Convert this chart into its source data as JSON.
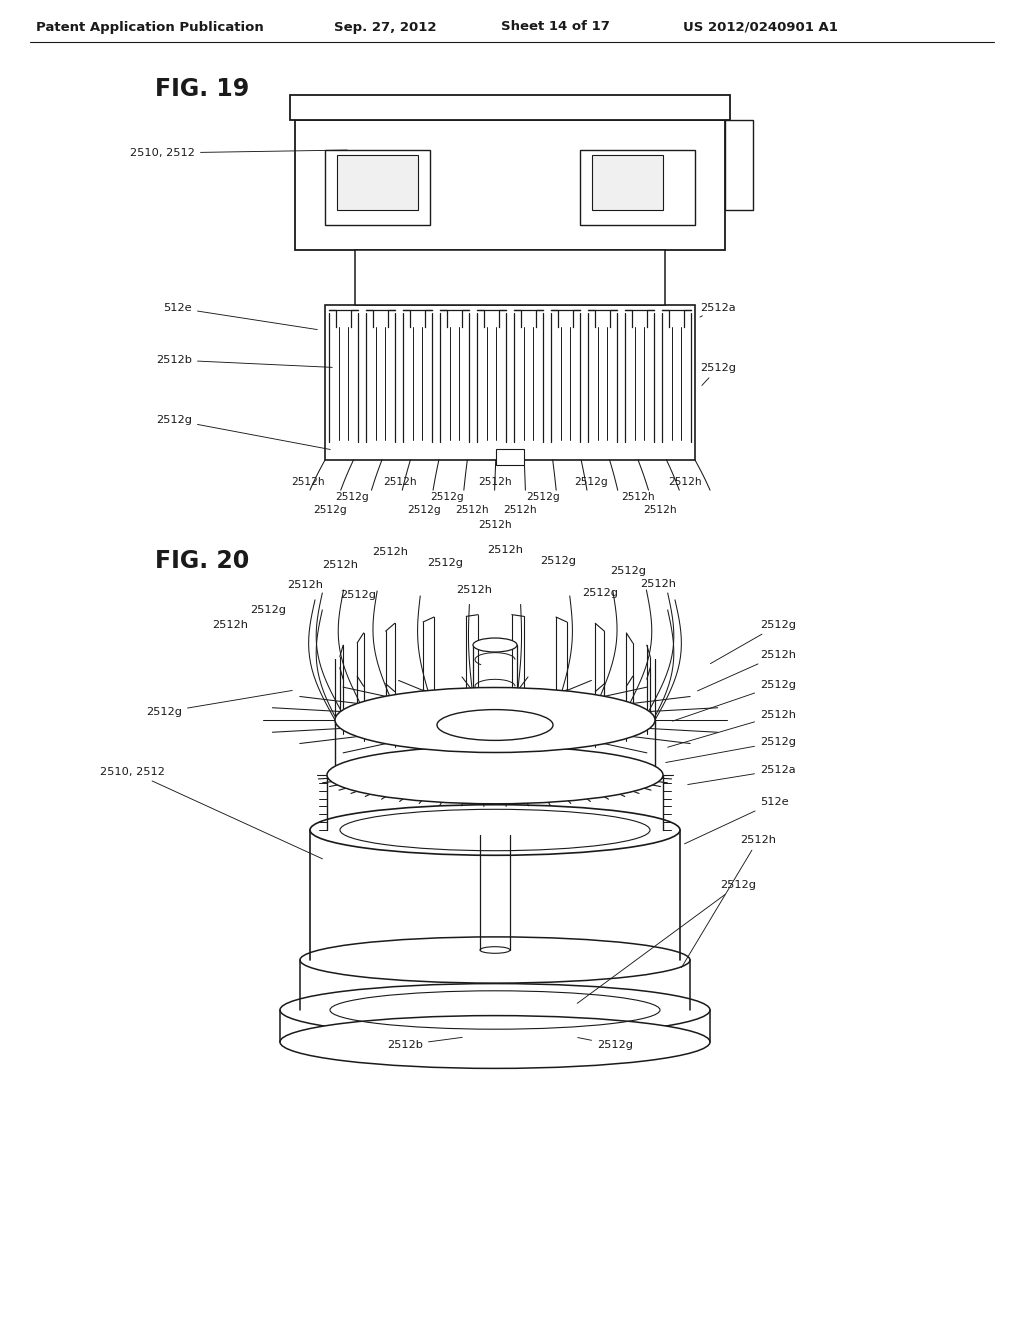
{
  "header_left": "Patent Application Publication",
  "header_date": "Sep. 27, 2012",
  "header_sheet": "Sheet 14 of 17",
  "header_patent": "US 2012/0240901 A1",
  "fig19_title": "FIG. 19",
  "fig20_title": "FIG. 20",
  "bg": "#ffffff",
  "lc": "#1a1a1a",
  "hfs": 9.5,
  "tfs": 17,
  "afs": 8.2
}
